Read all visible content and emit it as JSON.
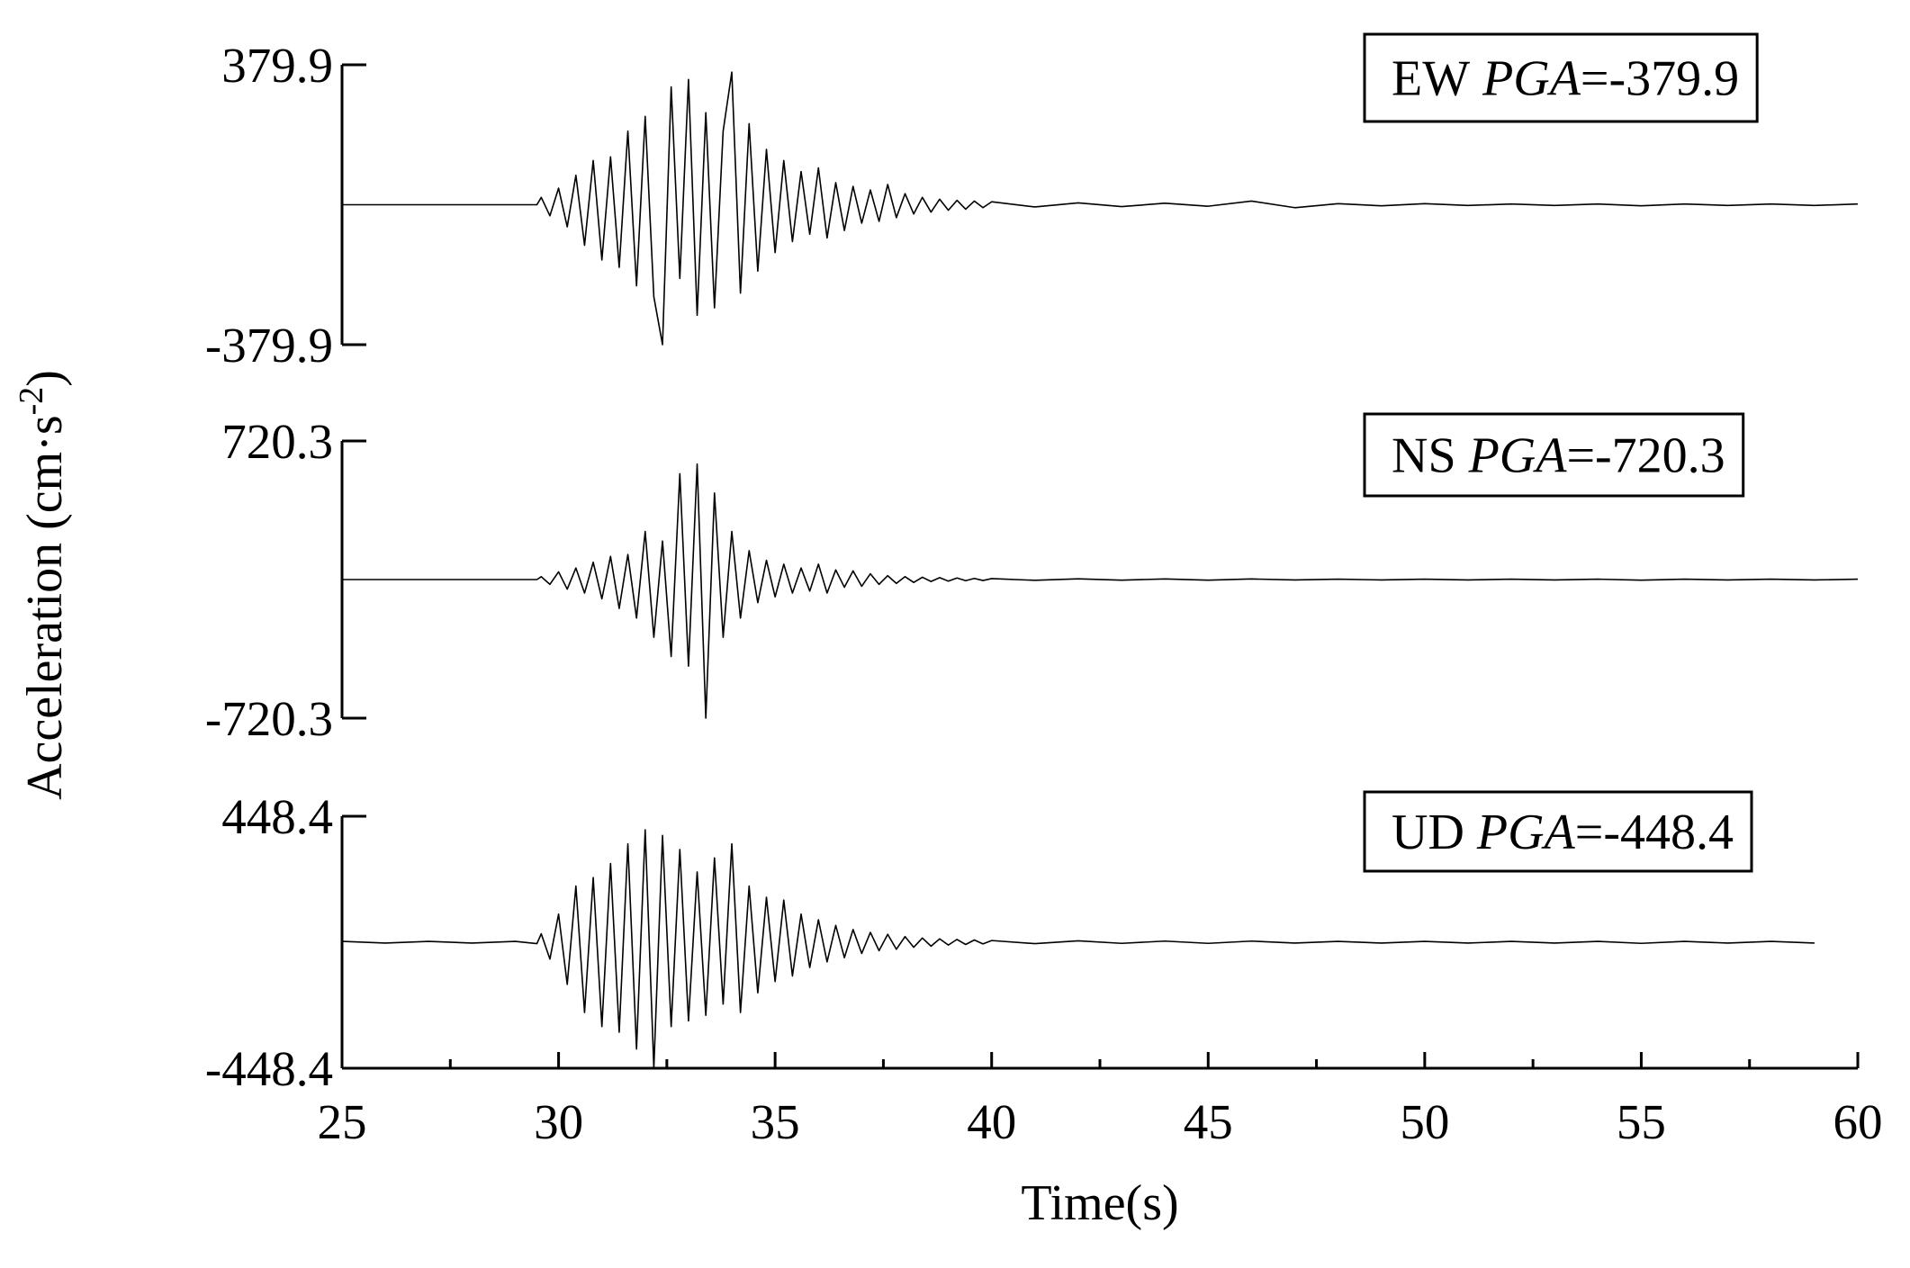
{
  "ylabel": [
    "Acceleration (cm·s",
    "-2",
    ")"
  ],
  "chart_data": [
    {
      "type": "line",
      "annotation": [
        "EW",
        "PGA",
        "=-379.9"
      ],
      "xlim": [
        25,
        60
      ],
      "ylim": [
        -379.9,
        379.9
      ],
      "yticks": [
        -379.9,
        379.9
      ],
      "color": "#000000",
      "x": [
        25,
        29.5,
        29.6,
        29.8,
        30,
        30.2,
        30.4,
        30.6,
        30.8,
        31,
        31.2,
        31.4,
        31.6,
        31.8,
        32,
        32.2,
        32.4,
        32.6,
        32.8,
        33,
        33.2,
        33.4,
        33.6,
        33.8,
        34,
        34.2,
        34.4,
        34.6,
        34.8,
        35,
        35.2,
        35.4,
        35.6,
        35.8,
        36,
        36.2,
        36.4,
        36.6,
        36.8,
        37,
        37.2,
        37.4,
        37.6,
        37.8,
        38,
        38.2,
        38.4,
        38.6,
        38.8,
        39,
        39.2,
        39.4,
        39.6,
        39.8,
        40,
        41,
        42,
        43,
        44,
        45,
        46,
        47,
        48,
        49,
        50,
        51,
        52,
        53,
        54,
        55,
        56,
        57,
        58,
        59,
        60
      ],
      "values": [
        0,
        0,
        20,
        -30,
        45,
        -60,
        80,
        -110,
        120,
        -150,
        130,
        -170,
        200,
        -220,
        240,
        -250,
        -379.9,
        320,
        -200,
        340,
        -300,
        250,
        -280,
        200,
        360,
        -240,
        220,
        -180,
        150,
        -130,
        120,
        -100,
        90,
        -80,
        100,
        -90,
        60,
        -70,
        50,
        -50,
        40,
        -45,
        55,
        -35,
        30,
        -25,
        20,
        -20,
        15,
        -15,
        12,
        -12,
        10,
        -8,
        8,
        -6,
        5,
        -5,
        4,
        -4,
        10,
        -8,
        3,
        -3,
        3,
        -2,
        2,
        -2,
        2,
        -3,
        2,
        -2,
        2,
        -2,
        2
      ]
    },
    {
      "type": "line",
      "annotation": [
        "NS",
        "PGA",
        "=-720.3"
      ],
      "xlim": [
        25,
        60
      ],
      "ylim": [
        -720.3,
        720.3
      ],
      "yticks": [
        -720.3,
        720.3
      ],
      "color": "#000000",
      "x": [
        25,
        29.5,
        29.6,
        29.8,
        30,
        30.2,
        30.4,
        30.6,
        30.8,
        31,
        31.2,
        31.4,
        31.6,
        31.8,
        32,
        32.2,
        32.4,
        32.6,
        32.8,
        33,
        33.2,
        33.4,
        33.6,
        33.8,
        34,
        34.2,
        34.4,
        34.6,
        34.8,
        35,
        35.2,
        35.4,
        35.6,
        35.8,
        36,
        36.2,
        36.4,
        36.6,
        36.8,
        37,
        37.2,
        37.4,
        37.6,
        37.8,
        38,
        38.2,
        38.4,
        38.6,
        38.8,
        39,
        39.2,
        39.4,
        39.6,
        39.8,
        40,
        41,
        42,
        43,
        44,
        45,
        46,
        47,
        48,
        49,
        50,
        51,
        52,
        53,
        54,
        55,
        56,
        57,
        58,
        59,
        60
      ],
      "values": [
        0,
        0,
        15,
        -25,
        40,
        -50,
        60,
        -70,
        90,
        -100,
        120,
        -150,
        130,
        -200,
        250,
        -300,
        200,
        -400,
        550,
        -450,
        600,
        -720.3,
        450,
        -300,
        250,
        -200,
        150,
        -120,
        100,
        -90,
        80,
        -70,
        60,
        -60,
        80,
        -70,
        50,
        -40,
        45,
        -35,
        30,
        -25,
        20,
        -20,
        15,
        -15,
        12,
        -10,
        10,
        -8,
        8,
        -6,
        6,
        -5,
        5,
        -4,
        4,
        -3,
        3,
        -3,
        3,
        -2,
        2,
        -2,
        2,
        -2,
        2,
        -2,
        2,
        -3,
        2,
        -2,
        2,
        -2,
        2
      ]
    },
    {
      "type": "line",
      "annotation": [
        "UD",
        "PGA",
        "=-448.4"
      ],
      "xlabel": "Time(s)",
      "xlim": [
        25,
        60
      ],
      "xticks": [
        25,
        30,
        35,
        40,
        45,
        50,
        55,
        60
      ],
      "ylim": [
        -448.4,
        448.4
      ],
      "yticks": [
        -448.4,
        448.4
      ],
      "color": "#000000",
      "x": [
        25,
        26,
        27,
        28,
        29,
        29.5,
        29.6,
        29.8,
        30,
        30.2,
        30.4,
        30.6,
        30.8,
        31,
        31.2,
        31.4,
        31.6,
        31.8,
        32,
        32.2,
        32.4,
        32.6,
        32.8,
        33,
        33.2,
        33.4,
        33.6,
        33.8,
        34,
        34.2,
        34.4,
        34.6,
        34.8,
        35,
        35.2,
        35.4,
        35.6,
        35.8,
        36,
        36.2,
        36.4,
        36.6,
        36.8,
        37,
        37.2,
        37.4,
        37.6,
        37.8,
        38,
        38.2,
        38.4,
        38.6,
        38.8,
        39,
        39.2,
        39.4,
        39.6,
        39.8,
        40,
        41,
        42,
        43,
        44,
        45,
        46,
        47,
        48,
        49,
        50,
        51,
        52,
        53,
        54,
        55,
        56,
        57,
        58,
        59
      ],
      "values": [
        3,
        -3,
        3,
        -3,
        3,
        -5,
        30,
        -60,
        100,
        -150,
        200,
        -250,
        230,
        -300,
        280,
        -320,
        350,
        -380,
        400,
        -448.4,
        380,
        -300,
        330,
        -280,
        250,
        -260,
        300,
        -220,
        350,
        -250,
        200,
        -180,
        160,
        -140,
        150,
        -120,
        100,
        -90,
        80,
        -70,
        60,
        -55,
        45,
        -40,
        35,
        -30,
        28,
        -25,
        20,
        -18,
        15,
        -14,
        12,
        -10,
        10,
        -8,
        8,
        -6,
        6,
        -5,
        5,
        -4,
        4,
        -4,
        4,
        -3,
        3,
        -3,
        3,
        -3,
        3,
        -3,
        3,
        -4,
        3,
        -3,
        3,
        -3
      ]
    }
  ]
}
